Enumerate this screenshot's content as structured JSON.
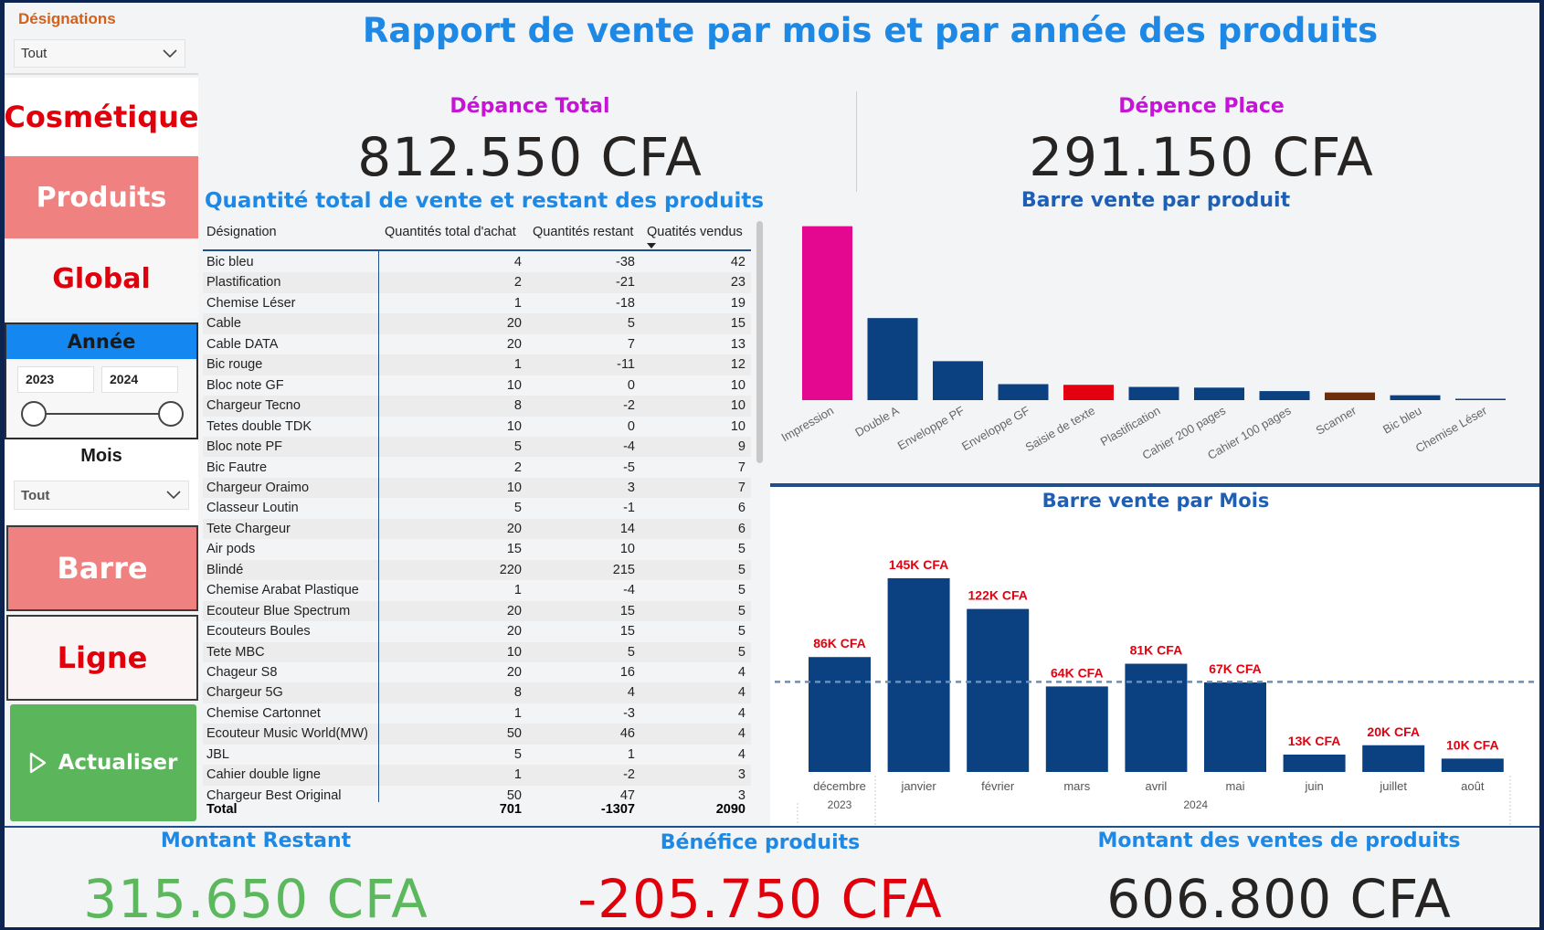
{
  "title": "Rapport de vente par mois et par année des produits",
  "sidebar": {
    "designations_label": "Désignations",
    "designations_value": "Tout",
    "nav": [
      "Cosmétique",
      "Produits",
      "Global"
    ],
    "annee_label": "Année",
    "year_from": "2023",
    "year_to": "2024",
    "mois_label": "Mois",
    "mois_value": "Tout",
    "barre_label": "Barre",
    "ligne_label": "Ligne",
    "refresh_label": "Actualiser"
  },
  "kpis": {
    "depense_total_label": "Dépance Total",
    "depense_total_value": "812.550 CFA",
    "depense_place_label": "Dépence Place",
    "depense_place_value": "291.150 CFA",
    "montant_restant_label": "Montant Restant",
    "montant_restant_value": "315.650 CFA",
    "benefice_label": "Bénéfice produits",
    "benefice_value": "-205.750 CFA",
    "montant_ventes_label": "Montant des ventes de produits",
    "montant_ventes_value": "606.800 CFA"
  },
  "table": {
    "title": "Quantité total de vente et restant des produits",
    "columns": [
      "Désignation",
      "Quantités total d'achat",
      "Quantités restant",
      "Quatités vendus"
    ],
    "rows": [
      [
        "Bic bleu",
        "4",
        "-38",
        "42"
      ],
      [
        "Plastification",
        "2",
        "-21",
        "23"
      ],
      [
        "Chemise Léser",
        "1",
        "-18",
        "19"
      ],
      [
        "Cable",
        "20",
        "5",
        "15"
      ],
      [
        "Cable DATA",
        "20",
        "7",
        "13"
      ],
      [
        "Bic rouge",
        "1",
        "-11",
        "12"
      ],
      [
        "Bloc note GF",
        "10",
        "0",
        "10"
      ],
      [
        "Chargeur Tecno",
        "8",
        "-2",
        "10"
      ],
      [
        "Tetes double TDK",
        "10",
        "0",
        "10"
      ],
      [
        "Bloc note PF",
        "5",
        "-4",
        "9"
      ],
      [
        "Bic Fautre",
        "2",
        "-5",
        "7"
      ],
      [
        "Chargeur Oraimo",
        "10",
        "3",
        "7"
      ],
      [
        "Classeur Loutin",
        "5",
        "-1",
        "6"
      ],
      [
        "Tete Chargeur",
        "20",
        "14",
        "6"
      ],
      [
        "Air pods",
        "15",
        "10",
        "5"
      ],
      [
        "Blindé",
        "220",
        "215",
        "5"
      ],
      [
        "Chemise Arabat Plastique",
        "1",
        "-4",
        "5"
      ],
      [
        "Ecouteur Blue Spectrum",
        "20",
        "15",
        "5"
      ],
      [
        "Ecouteurs Boules",
        "20",
        "15",
        "5"
      ],
      [
        "Tete MBC",
        "10",
        "5",
        "5"
      ],
      [
        "Chageur S8",
        "20",
        "16",
        "4"
      ],
      [
        "Chargeur 5G",
        "8",
        "4",
        "4"
      ],
      [
        "Chemise Cartonnet",
        "1",
        "-3",
        "4"
      ],
      [
        "Ecouteur Music World(MW)",
        "50",
        "46",
        "4"
      ],
      [
        "JBL",
        "5",
        "1",
        "4"
      ],
      [
        "Cahier double ligne",
        "1",
        "-2",
        "3"
      ],
      [
        "Chargeur Best Original",
        "50",
        "47",
        "3"
      ]
    ],
    "total": [
      "Total",
      "701",
      "-1307",
      "2090"
    ]
  },
  "chart_data": [
    {
      "type": "bar",
      "title": "Barre vente par produit",
      "categories": [
        "Impression",
        "Double A",
        "Enveloppe PF",
        "Enveloppe GF",
        "Saisie de texte",
        "Plastification",
        "Cahier 200 pages",
        "Cahier 100 pages",
        "Scanner",
        "Bic bleu",
        "Chemise Léser"
      ],
      "values": [
        250,
        118,
        56,
        23,
        22,
        19,
        18,
        13,
        11,
        7,
        2
      ],
      "colors": [
        "#e3088f",
        "#0b4181",
        "#0b4181",
        "#0b4181",
        "#e3000f",
        "#0b4181",
        "#0b4181",
        "#0b4181",
        "#6b2d0c",
        "#0b4181",
        "#0b4181"
      ],
      "ylim": [
        0,
        260
      ]
    },
    {
      "type": "bar",
      "title": "Barre vente par Mois",
      "categories": [
        "décembre",
        "janvier",
        "février",
        "mars",
        "avril",
        "mai",
        "juin",
        "juillet",
        "août"
      ],
      "groups": [
        "2023",
        "2024"
      ],
      "values": [
        86,
        145,
        122,
        64,
        81,
        67,
        13,
        20,
        10
      ],
      "labels": [
        "86K CFA",
        "145K CFA",
        "122K CFA",
        "64K CFA",
        "81K CFA",
        "67K CFA",
        "13K CFA",
        "20K CFA",
        "10K CFA"
      ],
      "average_line": 67.4,
      "color": "#0b4181",
      "label_color": "#e3000f",
      "ylim": [
        0,
        160
      ]
    }
  ]
}
